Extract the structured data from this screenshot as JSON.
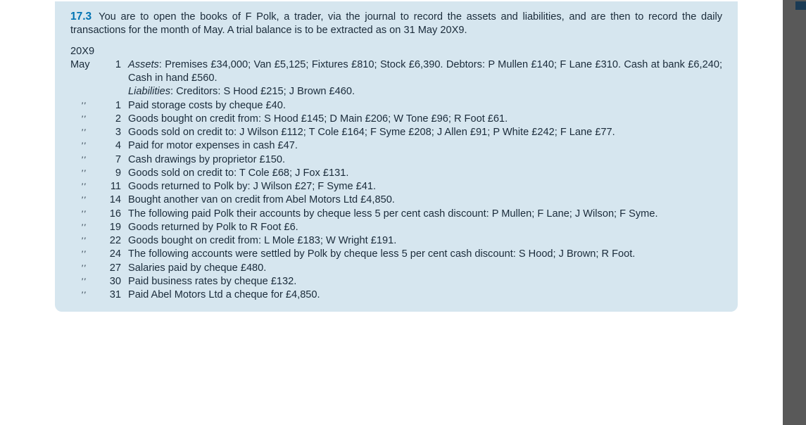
{
  "colors": {
    "box_bg": "#d6e6ef",
    "page_bg": "#ffffff",
    "body_bg": "#e5e5e5",
    "accent": "#0073b3",
    "text": "#1a2b3a",
    "strip": "#595959",
    "strip_accent": "#1a3a54"
  },
  "problem": {
    "number": "17.3",
    "intro": "You are to open the books of F Polk, a trader, via the journal to record the assets and liabilities, and are then to record the daily transactions for the month of May. A trial balance is to be extracted as on 31 May 20X9.",
    "year": "20X9",
    "month": "May",
    "ditto": "ʹʹ",
    "rows": [
      {
        "m": "May",
        "d": "1",
        "html": "<span class='ital'>Assets</span>: Premises £34,000; Van £5,125; Fixtures £810; Stock £6,390. Debtors: P Mullen £140; F Lane £310. Cash at bank £6,240; Cash in hand £560."
      },
      {
        "m": "",
        "d": "",
        "html": "<span class='ital'>Liabilities</span>: Creditors: S Hood £215; J Brown £460."
      },
      {
        "m": "ditto",
        "d": "1",
        "html": "Paid storage costs by cheque £40."
      },
      {
        "m": "ditto",
        "d": "2",
        "html": "Goods bought on credit from: S Hood £145; D Main £206; W Tone £96; R Foot £61."
      },
      {
        "m": "ditto",
        "d": "3",
        "html": "Goods sold on credit to: J Wilson £112; T Cole £164; F Syme £208; J Allen £91; P White £242; F Lane £77."
      },
      {
        "m": "ditto",
        "d": "4",
        "html": "Paid for motor expenses in cash £47."
      },
      {
        "m": "ditto",
        "d": "7",
        "html": "Cash drawings by proprietor £150."
      },
      {
        "m": "ditto",
        "d": "9",
        "html": "Goods sold on credit to: T Cole £68; J Fox £131."
      },
      {
        "m": "ditto",
        "d": "11",
        "html": "Goods returned to Polk by: J Wilson £27; F Syme £41."
      },
      {
        "m": "ditto",
        "d": "14",
        "html": "Bought another van on credit from Abel Motors Ltd £4,850."
      },
      {
        "m": "ditto",
        "d": "16",
        "html": "The following paid Polk their accounts by cheque less 5 per cent cash discount: P Mullen; F Lane; J Wilson; F Syme."
      },
      {
        "m": "ditto",
        "d": "19",
        "html": "Goods returned by Polk to R Foot £6."
      },
      {
        "m": "ditto",
        "d": "22",
        "html": "Goods bought on credit from: L Mole £183; W Wright £191."
      },
      {
        "m": "ditto",
        "d": "24",
        "html": "The following accounts were settled by Polk by cheque less 5 per cent cash discount: S Hood; J Brown; R Foot."
      },
      {
        "m": "ditto",
        "d": "27",
        "html": "Salaries paid by cheque £480."
      },
      {
        "m": "ditto",
        "d": "30",
        "html": "Paid business rates by cheque £132."
      },
      {
        "m": "ditto",
        "d": "31",
        "html": "Paid Abel Motors Ltd a cheque for £4,850."
      }
    ]
  }
}
